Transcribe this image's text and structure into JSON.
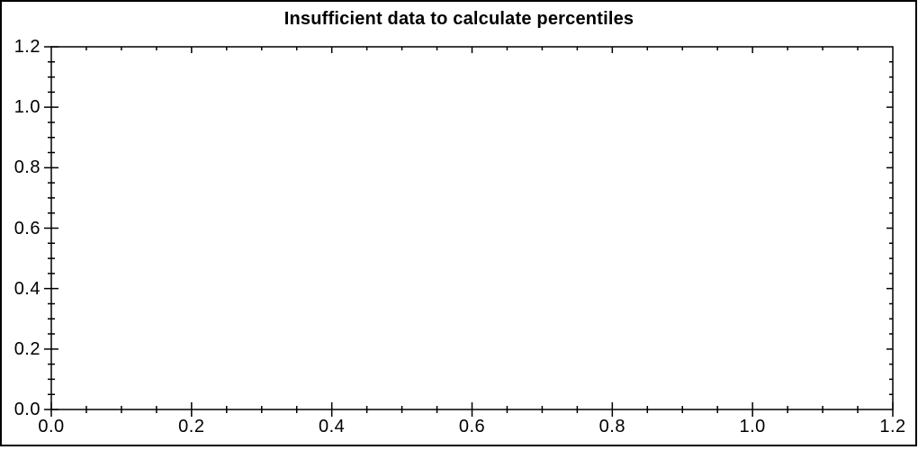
{
  "window": {
    "background": "#ffffff",
    "border_color": "#000000"
  },
  "chart_data": {
    "type": "line",
    "title": "Insufficient data to calculate percentiles",
    "xlabel": "",
    "ylabel": "",
    "series": [],
    "x_axis": {
      "min": 0.0,
      "max": 1.2,
      "major_step": 0.2,
      "minor_step": 0.05,
      "tick_labels": [
        "0.0",
        "0.2",
        "0.4",
        "0.6",
        "0.8",
        "1.0",
        "1.2"
      ]
    },
    "y_axis": {
      "min": 0.0,
      "max": 1.2,
      "major_step": 0.2,
      "minor_step": 0.05,
      "tick_labels": [
        "0.0",
        "0.2",
        "0.4",
        "0.6",
        "0.8",
        "1.0",
        "1.2"
      ]
    },
    "grid": false,
    "legend": false,
    "frame": "full-box",
    "axis_color": "#000000",
    "title_color": "#000000"
  }
}
